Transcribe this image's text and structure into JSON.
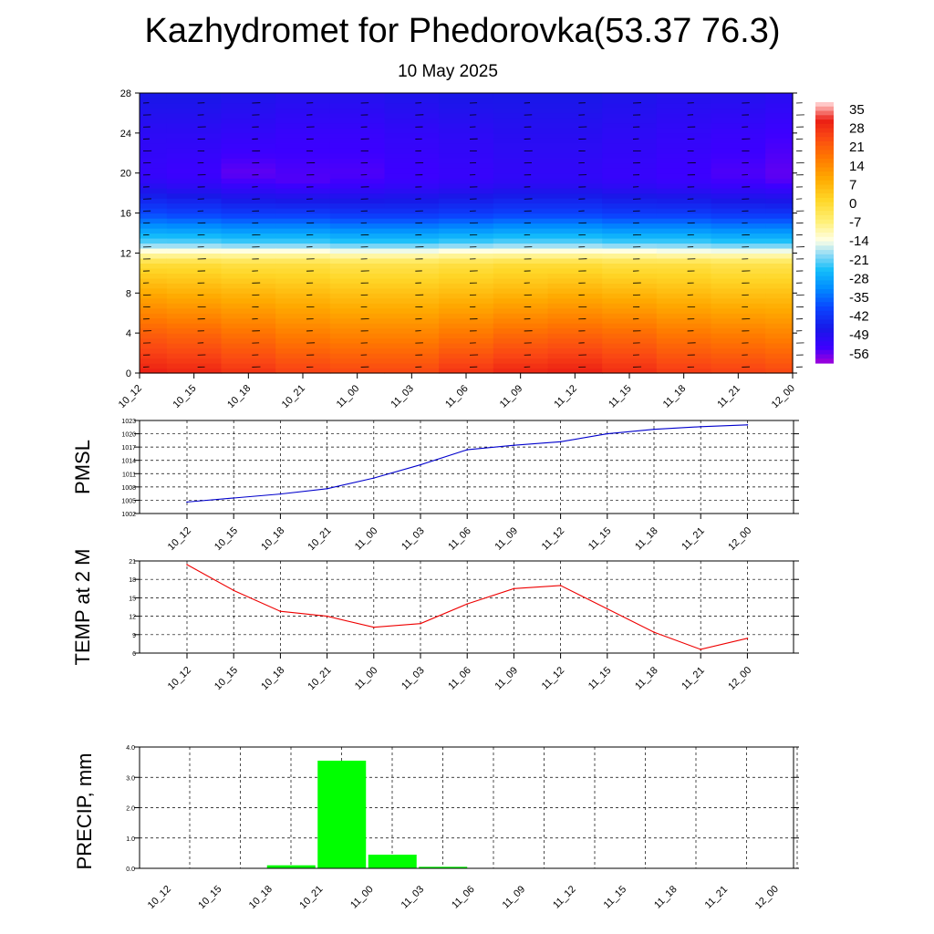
{
  "header": {
    "title": "Kazhydromet for Phedorovka(53.37 76.3)",
    "subtitle": "10 May 2025"
  },
  "time_labels": [
    "10_12",
    "10_15",
    "10_18",
    "10_21",
    "11_00",
    "11_03",
    "11_06",
    "11_09",
    "11_12",
    "11_15",
    "11_18",
    "11_21",
    "12_00"
  ],
  "colors": {
    "pmsl_line": "#0000cc",
    "temp_line": "#ee0000",
    "precip_bar": "#00ff00",
    "axis": "#000000",
    "grid": "#000000"
  },
  "chart_data": [
    {
      "type": "heatmap",
      "title": "",
      "xlabel": "",
      "ylabel": "",
      "x": [
        "10_12",
        "10_15",
        "10_18",
        "10_21",
        "11_00",
        "11_03",
        "11_06",
        "11_09",
        "11_12",
        "11_15",
        "11_18",
        "11_21",
        "12_00"
      ],
      "ylim": [
        0,
        28
      ],
      "yticks": [
        "0",
        "4",
        "8",
        "12",
        "16",
        "20",
        "24",
        "28"
      ],
      "colorbar": {
        "labels": [
          "35",
          "28",
          "21",
          "14",
          "7",
          "0",
          "-7",
          "-14",
          "-21",
          "-28",
          "-35",
          "-42",
          "-49",
          "-56"
        ],
        "range": [
          -60,
          36
        ]
      },
      "overlay": "wind barbs",
      "levels": [
        0,
        4,
        8,
        11,
        12,
        13,
        16,
        19,
        20,
        24,
        28
      ],
      "values_by_level": [
        [
          30,
          29,
          27,
          25,
          24,
          24,
          27,
          29,
          30,
          28,
          26,
          25,
          24
        ],
        [
          20,
          19,
          17,
          15,
          14,
          14,
          16,
          18,
          19,
          18,
          16,
          15,
          14
        ],
        [
          8,
          7,
          6,
          5,
          4,
          4,
          5,
          6,
          7,
          6,
          5,
          4,
          4
        ],
        [
          -2,
          -2,
          -3,
          -3,
          -4,
          -4,
          -3,
          -2,
          -2,
          -3,
          -3,
          -4,
          -4
        ],
        [
          -12,
          -12,
          -12,
          -12,
          -13,
          -13,
          -12,
          -12,
          -12,
          -12,
          -13,
          -13,
          -13
        ],
        [
          -22,
          -22,
          -23,
          -23,
          -24,
          -24,
          -23,
          -22,
          -22,
          -23,
          -23,
          -24,
          -24
        ],
        [
          -40,
          -41,
          -42,
          -42,
          -43,
          -43,
          -42,
          -41,
          -41,
          -42,
          -42,
          -43,
          -43
        ],
        [
          -52,
          -53,
          -55,
          -56,
          -55,
          -54,
          -53,
          -52,
          -52,
          -53,
          -54,
          -55,
          -56
        ],
        [
          -54,
          -55,
          -57,
          -56,
          -56,
          -55,
          -54,
          -53,
          -53,
          -54,
          -55,
          -56,
          -57
        ],
        [
          -52,
          -52,
          -53,
          -54,
          -54,
          -53,
          -52,
          -51,
          -51,
          -52,
          -53,
          -54,
          -55
        ],
        [
          -48,
          -48,
          -49,
          -50,
          -50,
          -49,
          -48,
          -48,
          -48,
          -49,
          -50,
          -50,
          -51
        ]
      ]
    },
    {
      "type": "line",
      "title": "",
      "xlabel": "",
      "ylabel": "PMSL",
      "ylim": [
        1002,
        1023
      ],
      "yticks": [
        "1002",
        "1005",
        "1008",
        "1011",
        "1014",
        "1017",
        "1020",
        "1023"
      ],
      "categories": [
        "10_12",
        "10_15",
        "10_18",
        "10_21",
        "11_00",
        "11_03",
        "11_06",
        "11_09",
        "11_12",
        "11_15",
        "11_18",
        "11_21",
        "12_00"
      ],
      "series": [
        {
          "values": [
            1004.6,
            1005.5,
            1006.4,
            1007.6,
            1010.0,
            1013.0,
            1016.4,
            1017.4,
            1018.2,
            1020.0,
            1021.0,
            1021.6,
            1022.0
          ]
        }
      ]
    },
    {
      "type": "line",
      "title": "",
      "xlabel": "",
      "ylabel": "TEMP at 2 M",
      "ylim": [
        6,
        21
      ],
      "yticks": [
        "6",
        "9",
        "12",
        "15",
        "18",
        "21"
      ],
      "categories": [
        "10_12",
        "10_15",
        "10_18",
        "10_21",
        "11_00",
        "11_03",
        "11_06",
        "11_09",
        "11_12",
        "11_15",
        "11_18",
        "11_21",
        "12_00"
      ],
      "series": [
        {
          "values": [
            20.4,
            16.2,
            12.8,
            12.0,
            10.2,
            10.8,
            14.0,
            16.5,
            17.0,
            13.2,
            9.4,
            6.6,
            8.4
          ]
        }
      ]
    },
    {
      "type": "bar",
      "title": "",
      "xlabel": "",
      "ylabel": "PRECIP, mm",
      "ylim": [
        0,
        4
      ],
      "yticks": [
        "0.0",
        "1.0",
        "2.0",
        "3.0",
        "4.0"
      ],
      "categories": [
        "10_12",
        "10_15",
        "10_18",
        "10_21",
        "11_00",
        "11_03",
        "11_06",
        "11_09",
        "11_12",
        "11_15",
        "11_18",
        "11_21",
        "12_00"
      ],
      "values": [
        0,
        0,
        0,
        0.1,
        3.55,
        0.45,
        0.05,
        0,
        0,
        0,
        0,
        0,
        0
      ]
    }
  ]
}
